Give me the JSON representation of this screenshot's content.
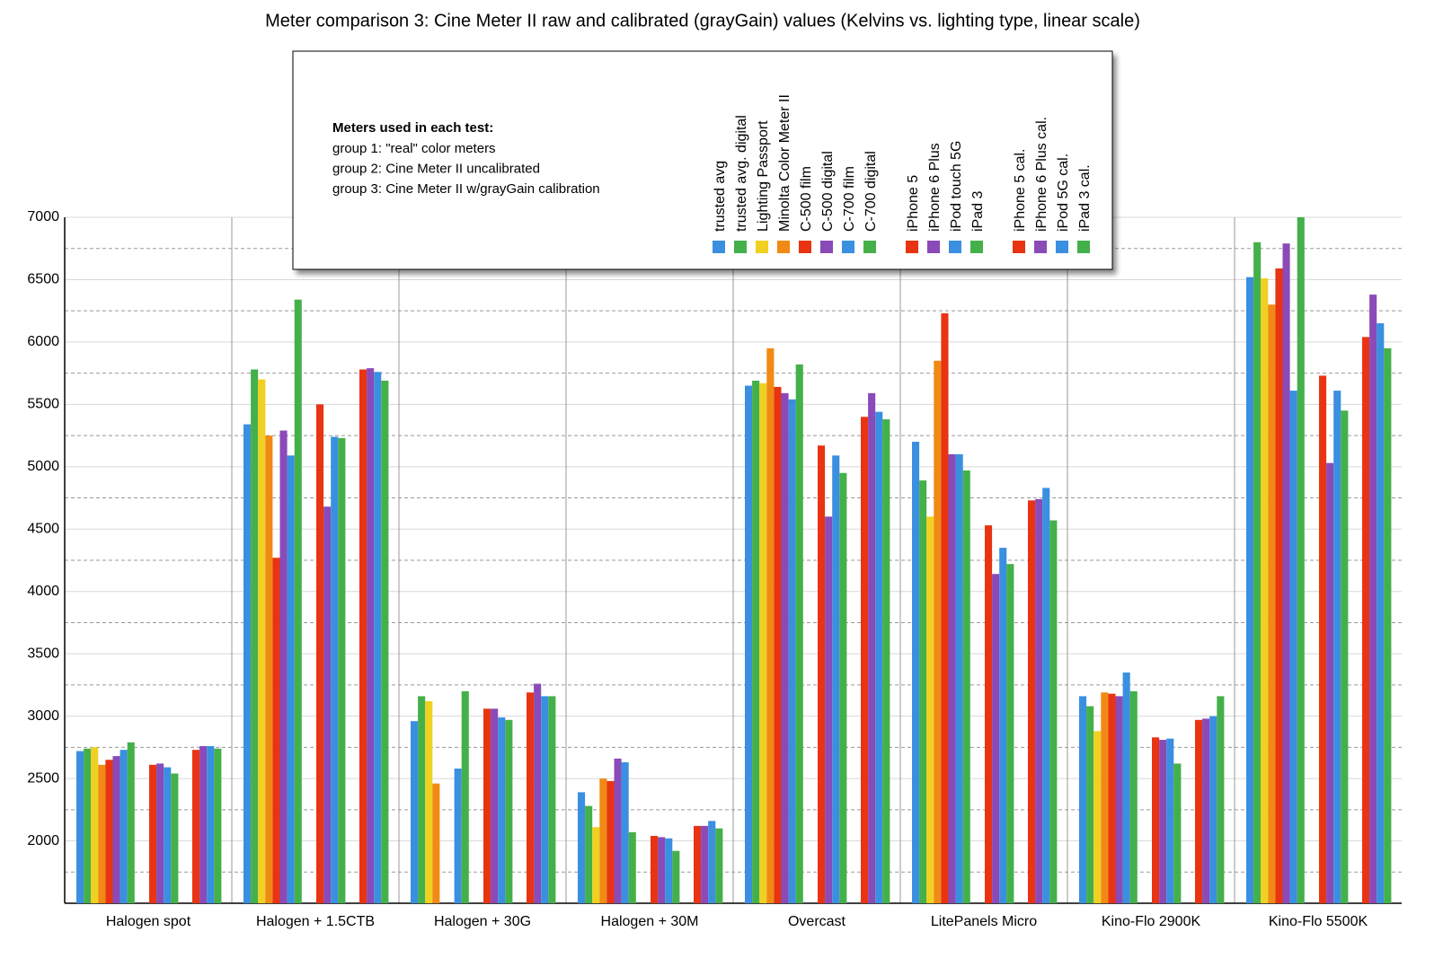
{
  "chart_data": {
    "type": "bar",
    "title": "Meter comparison 3: Cine Meter II raw and calibrated (grayGain) values (Kelvins vs. lighting type, linear scale)",
    "legend_title": "Meters used in each test:",
    "legend_lines": [
      "group 1:  \"real\" color meters",
      "group 2:  Cine Meter II uncalibrated",
      "group 3:  Cine Meter II w/grayGain calibration"
    ],
    "categories": [
      "Halogen spot",
      "Halogen + 1.5CTB",
      "Halogen + 30G",
      "Halogen + 30M",
      "Overcast",
      "LitePanels Micro",
      "Kino-Flo 2900K",
      "Kino-Flo 5500K"
    ],
    "ylim": [
      1500,
      7000
    ],
    "yticks": [
      2000,
      2500,
      3000,
      3500,
      4000,
      4500,
      5000,
      5500,
      6000,
      6500,
      7000
    ],
    "grid": true,
    "series": [
      {
        "name": "trusted avg",
        "color": "#3a8fe0",
        "values": [
          2720,
          5340,
          2960,
          2390,
          5650,
          5200,
          3160,
          6520
        ]
      },
      {
        "name": "trusted avg. digital",
        "color": "#44b04a",
        "values": [
          2740,
          5780,
          3160,
          2280,
          5690,
          4890,
          3080,
          6800
        ]
      },
      {
        "name": "Lighting Passport",
        "color": "#f0d020",
        "values": [
          2750,
          5700,
          3120,
          2110,
          5670,
          4600,
          2880,
          6510
        ]
      },
      {
        "name": "Minolta Color Meter II",
        "color": "#f08a14",
        "values": [
          2610,
          5250,
          2460,
          2500,
          5950,
          5850,
          3190,
          6300
        ]
      },
      {
        "name": "C-500 film",
        "color": "#e83412",
        "values": [
          2650,
          4270,
          null,
          2480,
          5640,
          6230,
          3180,
          6590
        ]
      },
      {
        "name": "C-500 digital",
        "color": "#8a4ab8",
        "values": [
          2680,
          5290,
          null,
          2660,
          5590,
          5100,
          3160,
          6790
        ]
      },
      {
        "name": "C-700 film",
        "color": "#3a8fe0",
        "values": [
          2730,
          5090,
          2580,
          2630,
          5540,
          5100,
          3350,
          5610
        ]
      },
      {
        "name": "C-700 digital",
        "color": "#44b04a",
        "values": [
          2790,
          6340,
          3200,
          2070,
          5820,
          4970,
          3200,
          7000
        ]
      },
      {
        "name": "iPhone 5",
        "color": "#e83412",
        "values": [
          2610,
          5500,
          3060,
          2040,
          5170,
          4530,
          2830,
          5730
        ]
      },
      {
        "name": "iPhone 6 Plus",
        "color": "#8a4ab8",
        "values": [
          2620,
          4680,
          3060,
          2030,
          4600,
          4140,
          2810,
          5030
        ]
      },
      {
        "name": "iPod touch 5G",
        "color": "#3a8fe0",
        "values": [
          2590,
          5240,
          2990,
          2020,
          5090,
          4350,
          2820,
          5610
        ]
      },
      {
        "name": "iPad 3",
        "color": "#44b04a",
        "values": [
          2540,
          5230,
          2970,
          1920,
          4950,
          4220,
          2620,
          5450
        ]
      },
      {
        "name": "iPhone 5 cal.",
        "color": "#e83412",
        "values": [
          2730,
          5780,
          3190,
          2120,
          5400,
          4730,
          2970,
          6040
        ]
      },
      {
        "name": "iPhone 6 Plus cal.",
        "color": "#8a4ab8",
        "values": [
          2760,
          5790,
          3260,
          2120,
          5590,
          4740,
          2980,
          6380
        ]
      },
      {
        "name": "iPod 5G cal.",
        "color": "#3a8fe0",
        "values": [
          2760,
          5760,
          3160,
          2160,
          5440,
          4830,
          3000,
          6150
        ]
      },
      {
        "name": "iPad 3 cal.",
        "color": "#44b04a",
        "values": [
          2740,
          5690,
          3160,
          2100,
          5380,
          4570,
          3160,
          5950
        ]
      }
    ]
  }
}
